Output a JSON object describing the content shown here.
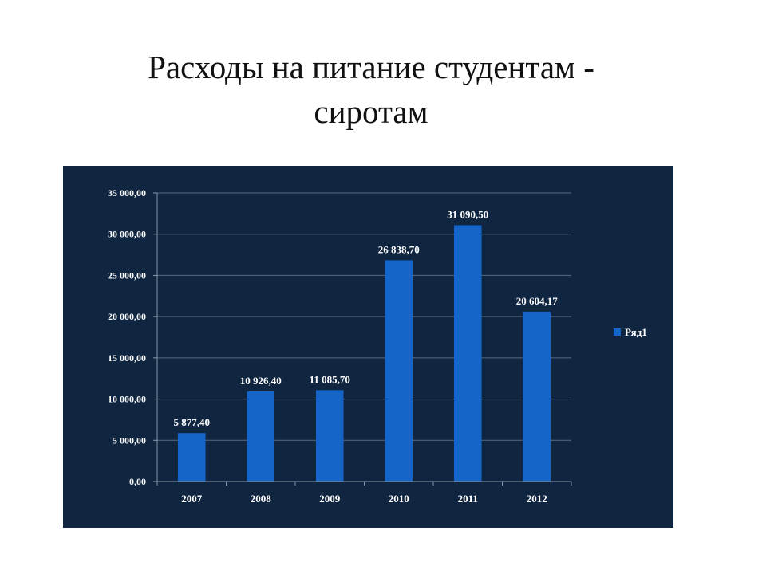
{
  "slide": {
    "title_line1": "Расходы на питание студентам -",
    "title_line2": "сиротам"
  },
  "colors": {
    "background": "#0f2540",
    "bar": "#1565c8",
    "text": "#ffffff"
  },
  "chart_data": {
    "type": "bar",
    "categories": [
      "2007",
      "2008",
      "2009",
      "2010",
      "2011",
      "2012"
    ],
    "series": [
      {
        "name": "Ряд1",
        "values": [
          5877.4,
          10926.4,
          11085.7,
          26838.7,
          31090.5,
          20604.17
        ],
        "data_labels": [
          "5 877,40",
          "10 926,40",
          "11 085,70",
          "26 838,70",
          "31 090,50",
          "20 604,17"
        ]
      }
    ],
    "ylim": [
      0,
      35000
    ],
    "y_ticks": [
      0,
      5000,
      10000,
      15000,
      20000,
      25000,
      30000,
      35000
    ],
    "y_tick_labels": [
      "0,00",
      "5 000,00",
      "10 000,00",
      "15 000,00",
      "20 000,00",
      "25 000,00",
      "30 000,00",
      "35 000,00"
    ],
    "grid": true,
    "legend_position": "right"
  }
}
